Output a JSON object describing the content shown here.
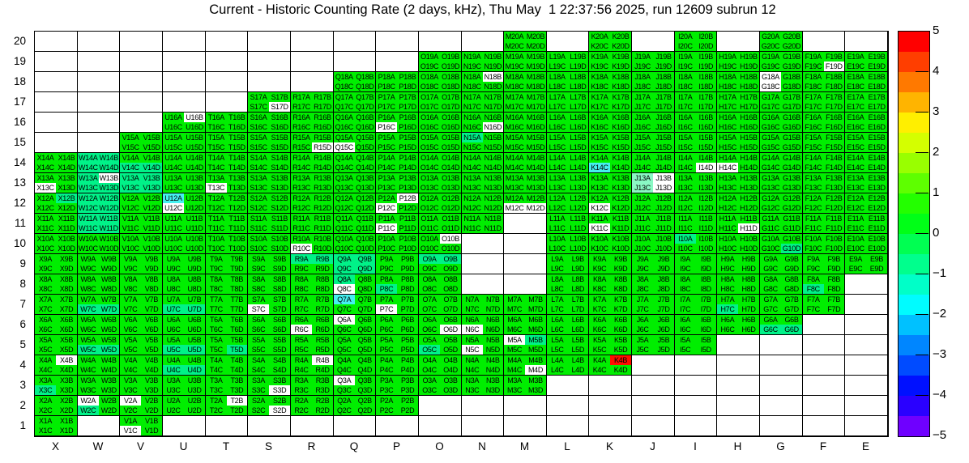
{
  "title": "Current - Historic Counting Rate (2 days, kHz), Thu May  1 22:37:56 2025, run 12609 subrun 12",
  "chart_data": {
    "type": "heatmap",
    "title": "Current - Historic Counting Rate (2 days, kHz), Thu May  1 22:37:56 2025, run 12609 subrun 12",
    "units": "kHz",
    "x_categories": [
      "X",
      "W",
      "V",
      "U",
      "T",
      "S",
      "R",
      "Q",
      "P",
      "O",
      "N",
      "M",
      "L",
      "K",
      "J",
      "I",
      "H",
      "G",
      "F",
      "E"
    ],
    "y_categories": [
      "20",
      "19",
      "18",
      "17",
      "16",
      "15",
      "14",
      "13",
      "12",
      "11",
      "10",
      "9",
      "8",
      "7",
      "6",
      "5",
      "4",
      "3",
      "2",
      "1"
    ],
    "quadrant_letters": [
      "A",
      "B",
      "C",
      "D"
    ],
    "colorbar": {
      "min": -5,
      "max": 5,
      "tick_labels": [
        "5",
        "4",
        "3",
        "2",
        "1",
        "0",
        "−1",
        "−2",
        "−3",
        "−4",
        "−5"
      ],
      "band_colors_top_to_bottom": [
        "#ff0000",
        "#ff3e00",
        "#ff7900",
        "#ffb400",
        "#ffef00",
        "#d4ff00",
        "#99ff00",
        "#5eff00",
        "#23ff00",
        "#00ff17",
        "#00ff52",
        "#00ff8d",
        "#00ffc8",
        "#00fcff",
        "#00c1ff",
        "#0086ff",
        "#004bff",
        "#0010ff",
        "#2a00ff",
        "#6f00ff"
      ]
    },
    "palette": {
      "g": "#00ee00",
      "t": "#00f288",
      "s": "#8af8c4",
      "c": "#45f0f0",
      "r": "#ff0d00",
      "w": "#ffffff"
    },
    "value_legend": {
      "g": "approx 0 (unchanged rate)",
      "t": "approx -1",
      "s": "approx -1.3",
      "c": "approx -2",
      "r": "approx +5",
      "w": "no data / masked channel"
    },
    "rows": [
      {
        "row": "20",
        "cells": [
          "M",
          "K",
          "I",
          "G"
        ]
      },
      {
        "row": "19",
        "cells": [
          "O",
          "N",
          "M",
          "L",
          "K",
          "J",
          "I",
          "H",
          "G",
          "F",
          "E"
        ]
      },
      {
        "row": "18",
        "cells": [
          "Q",
          "P",
          "O",
          "N",
          "M",
          "L",
          "K",
          "J",
          "I",
          "H",
          "G",
          "F",
          "E"
        ]
      },
      {
        "row": "17",
        "cells": [
          "S",
          "R",
          "Q",
          "P",
          "O",
          "N",
          "M",
          "L",
          "K",
          "J",
          "I",
          "H",
          "G",
          "F",
          "E"
        ]
      },
      {
        "row": "16",
        "cells": [
          "U",
          "T",
          "S",
          "R",
          "Q",
          "P",
          "O",
          "N",
          "M",
          "L",
          "K",
          "J",
          "I",
          "H",
          "G",
          "F",
          "E"
        ]
      },
      {
        "row": "15",
        "cells": [
          "V",
          "U",
          "T",
          "S",
          "R",
          "Q",
          "P",
          "O",
          "N",
          "M",
          "L",
          "K",
          "J",
          "I",
          "H",
          "G",
          "F",
          "E"
        ]
      },
      {
        "row": "14",
        "cells": [
          "X",
          "W",
          "V",
          "U",
          "T",
          "S",
          "R",
          "Q",
          "P",
          "O",
          "N",
          "M",
          "L",
          "K",
          "J",
          "I",
          "H",
          "G",
          "F",
          "E"
        ]
      },
      {
        "row": "13",
        "cells": [
          "X",
          "W",
          "V",
          "U",
          "T",
          "S",
          "R",
          "Q",
          "P",
          "O",
          "N",
          "M",
          "L",
          "K",
          "J",
          "I",
          "H",
          "G",
          "F",
          "E"
        ]
      },
      {
        "row": "12",
        "cells": [
          "X",
          "W",
          "V",
          "U",
          "T",
          "S",
          "R",
          "Q",
          "P",
          "O",
          "N",
          "M",
          "L",
          "K",
          "J",
          "I",
          "H",
          "G",
          "F",
          "E"
        ]
      },
      {
        "row": "11",
        "cells": [
          "X",
          "W",
          "V",
          "U",
          "T",
          "S",
          "R",
          "Q",
          "P",
          "O",
          "N",
          "L",
          "K",
          "J",
          "I",
          "H",
          "G",
          "F",
          "E"
        ]
      },
      {
        "row": "10",
        "cells": [
          "X",
          "W",
          "V",
          "U",
          "T",
          "S",
          "R",
          "Q",
          "P",
          "O",
          "L",
          "K",
          "J",
          "I",
          "H",
          "G",
          "F",
          "E"
        ]
      },
      {
        "row": "9",
        "cells": [
          "X",
          "W",
          "V",
          "U",
          "T",
          "S",
          "R",
          "Q",
          "P",
          "O",
          "L",
          "K",
          "J",
          "I",
          "H",
          "G",
          "F",
          "E"
        ]
      },
      {
        "row": "8",
        "cells": [
          "X",
          "W",
          "V",
          "U",
          "T",
          "S",
          "R",
          "Q",
          "P",
          "O",
          "L",
          "K",
          "J",
          "I",
          "H",
          "G",
          "F"
        ]
      },
      {
        "row": "7",
        "cells": [
          "X",
          "W",
          "V",
          "U",
          "T",
          "S",
          "R",
          "Q",
          "P",
          "O",
          "N",
          "M",
          "L",
          "K",
          "J",
          "I",
          "H",
          "G",
          "F"
        ]
      },
      {
        "row": "6",
        "cells": [
          "X",
          "W",
          "V",
          "U",
          "T",
          "S",
          "R",
          "Q",
          "P",
          "O",
          "N",
          "M",
          "L",
          "K",
          "J",
          "I",
          "H",
          "G"
        ]
      },
      {
        "row": "5",
        "cells": [
          "X",
          "W",
          "V",
          "U",
          "T",
          "S",
          "R",
          "Q",
          "P",
          "O",
          "N",
          "M",
          "L",
          "K",
          "J",
          "I"
        ]
      },
      {
        "row": "4",
        "cells": [
          "X",
          "W",
          "V",
          "U",
          "T",
          "S",
          "R",
          "Q",
          "P",
          "O",
          "N",
          "M",
          "L",
          "K"
        ]
      },
      {
        "row": "3",
        "cells": [
          "X",
          "W",
          "V",
          "U",
          "T",
          "S",
          "R",
          "Q",
          "P",
          "O",
          "N",
          "M"
        ]
      },
      {
        "row": "2",
        "cells": [
          "X",
          "W",
          "V",
          "U",
          "T",
          "S",
          "R",
          "Q",
          "P"
        ]
      },
      {
        "row": "1",
        "cells": [
          "X",
          "V"
        ]
      }
    ],
    "quadrant_color_overrides": {
      "F19D": "w",
      "N18B": "w",
      "G18A": "w",
      "G18C": "w",
      "S17D": "w",
      "U16B": "w",
      "P16C": "w",
      "N16D": "w",
      "R15D": "w",
      "Q15C": "w",
      "N15A": "t",
      "W14A": "t",
      "W14B": "t",
      "W14C": "t",
      "W14D": "t",
      "V14C": "t",
      "V14D": "t",
      "K14C": "c",
      "I14D": "w",
      "H14C": "w",
      "X13C": "w",
      "W13A": "t",
      "W13B": "w",
      "W13C": "t",
      "W13D": "t",
      "V13A": "t",
      "V13B": "t",
      "V13C": "t",
      "V13D": "t",
      "T13C": "w",
      "J13A": "s",
      "J13B": "w",
      "J13C": "s",
      "J13D": "w",
      "X12B": "t",
      "W12A": "t",
      "W12B": "t",
      "W12C": "t",
      "W12D": "t",
      "U12A": "c",
      "U12C": "w",
      "P12B": "w",
      "P12C": "w",
      "M12C": "w",
      "M12D": "w",
      "K12C": "w",
      "W11A": "t",
      "W11B": "t",
      "W11C": "t",
      "W11D": "t",
      "P11C": "w",
      "K11C": "w",
      "H11D": "w",
      "R10C": "w",
      "O10B": "w",
      "I10A": "t",
      "G10D": "t",
      "R9A": "t",
      "R9B": "t",
      "Q9A": "t",
      "Q9B": "t",
      "Q9C": "t",
      "Q9D": "t",
      "O9A": "t",
      "O9B": "t",
      "Q8A": "t",
      "Q8C": "w",
      "P8C": "t",
      "F8C": "t",
      "W7C": "t",
      "W7D": "t",
      "U7C": "t",
      "U7D": "t",
      "S7C": "w",
      "Q7A": "c",
      "P7C": "w",
      "H7C": "t",
      "R6C": "w",
      "Q6A": "w",
      "O6D": "w",
      "N6C": "w",
      "G6C": "t",
      "G6D": "t",
      "W5C": "t",
      "W5D": "t",
      "U5C": "t",
      "U5D": "t",
      "T5D": "t",
      "O5C": "t",
      "N5C": "w",
      "M5A": "w",
      "M5B": "t",
      "X4B": "w",
      "U4C": "t",
      "U4D": "t",
      "R4B": "w",
      "M4D": "w",
      "K4B": "r",
      "X3C": "t",
      "S3D": "w",
      "Q3A": "w",
      "W2A": "w",
      "W2C": "t",
      "V2A": "w",
      "T2B": "w",
      "S2D": "w",
      "V1C": "w"
    }
  }
}
